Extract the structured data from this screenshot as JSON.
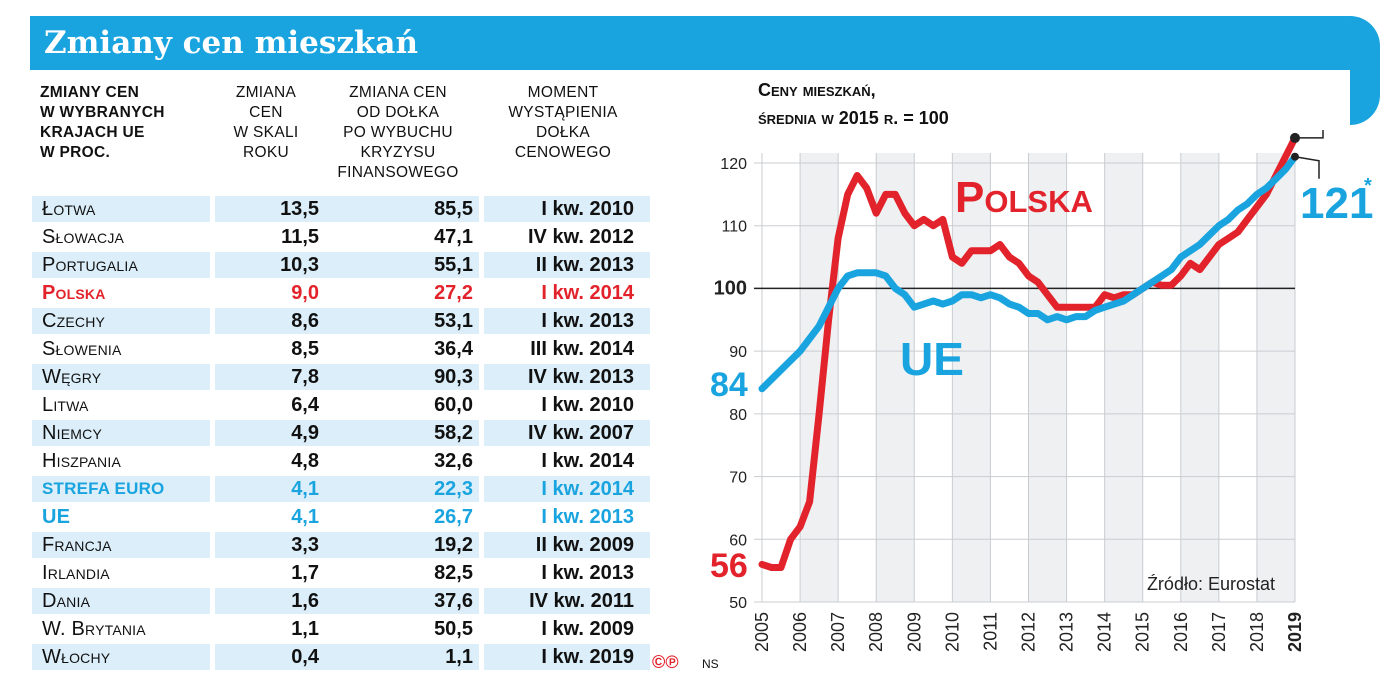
{
  "header": {
    "title": "Zmiany cen mieszkań"
  },
  "table": {
    "headers": {
      "title_lines": [
        "Zmiany cen",
        "w wybranych",
        "krajach UE",
        "w proc."
      ],
      "col1_lines": [
        "Zmiana",
        "cen",
        "w skali",
        "roku"
      ],
      "col2_lines": [
        "Zmiana cen",
        "od dołka",
        "po wybuchu",
        "kryzysu",
        "finansowego"
      ],
      "col3_lines": [
        "Moment",
        "wystąpienia",
        "dołka",
        "cenowego"
      ]
    },
    "rows": [
      {
        "country": "Łotwa",
        "change": "13,5",
        "from_low": "85,5",
        "moment": "I kw. 2010",
        "highlight": ""
      },
      {
        "country": "Słowacja",
        "change": "11,5",
        "from_low": "47,1",
        "moment": "IV kw. 2012",
        "highlight": ""
      },
      {
        "country": "Portugalia",
        "change": "10,3",
        "from_low": "55,1",
        "moment": "II kw. 2013",
        "highlight": ""
      },
      {
        "country": "Polska",
        "change": "9,0",
        "from_low": "27,2",
        "moment": "I kw. 2014",
        "highlight": "red"
      },
      {
        "country": "Czechy",
        "change": "8,6",
        "from_low": "53,1",
        "moment": "I kw. 2013",
        "highlight": ""
      },
      {
        "country": "Słowenia",
        "change": "8,5",
        "from_low": "36,4",
        "moment": "III kw. 2014",
        "highlight": ""
      },
      {
        "country": "Węgry",
        "change": "7,8",
        "from_low": "90,3",
        "moment": "IV kw. 2013",
        "highlight": ""
      },
      {
        "country": "Litwa",
        "change": "6,4",
        "from_low": "60,0",
        "moment": "I kw. 2010",
        "highlight": ""
      },
      {
        "country": "Niemcy",
        "change": "4,9",
        "from_low": "58,2",
        "moment": "IV kw. 2007",
        "highlight": ""
      },
      {
        "country": "Hiszpania",
        "change": "4,8",
        "from_low": "32,6",
        "moment": "I kw. 2014",
        "highlight": ""
      },
      {
        "country": "strefa euro",
        "change": "4,1",
        "from_low": "22,3",
        "moment": "I kw. 2014",
        "highlight": "blue euro"
      },
      {
        "country": "UE",
        "change": "4,1",
        "from_low": "26,7",
        "moment": "I kw. 2013",
        "highlight": "blue"
      },
      {
        "country": "Francja",
        "change": "3,3",
        "from_low": "19,2",
        "moment": "II kw. 2009",
        "highlight": ""
      },
      {
        "country": "Irlandia",
        "change": "1,7",
        "from_low": "82,5",
        "moment": "I kw. 2013",
        "highlight": ""
      },
      {
        "country": "Dania",
        "change": "1,6",
        "from_low": "37,6",
        "moment": "IV kw. 2011",
        "highlight": ""
      },
      {
        "country": "W. Brytania",
        "change": "1,1",
        "from_low": "50,5",
        "moment": "I kw. 2009",
        "highlight": ""
      },
      {
        "country": "Włochy",
        "change": "0,4",
        "from_low": "1,1",
        "moment": "I kw. 2019",
        "highlight": ""
      }
    ]
  },
  "footer": {
    "copyright": "©℗",
    "author": "NS"
  },
  "chart_data": {
    "type": "line",
    "title_lines": [
      "Ceny mieszkań,",
      "średnia w 2015 r. = 100"
    ],
    "source": "Źródło: Eurostat",
    "x_categories": [
      "2005",
      "2006",
      "2007",
      "2008",
      "2009",
      "2010",
      "2011",
      "2012",
      "2013",
      "2014",
      "2015",
      "2016",
      "2017",
      "2018",
      "2019"
    ],
    "ylim": [
      50,
      125
    ],
    "yticks": [
      50,
      60,
      70,
      80,
      90,
      100,
      110,
      120
    ],
    "reference_line": 100,
    "series": [
      {
        "name": "Polska",
        "color": "#e3232b",
        "x": [
          2005.0,
          2005.25,
          2005.5,
          2005.75,
          2006.0,
          2006.25,
          2006.5,
          2006.75,
          2007.0,
          2007.25,
          2007.5,
          2007.75,
          2008.0,
          2008.25,
          2008.5,
          2008.75,
          2009.0,
          2009.25,
          2009.5,
          2009.75,
          2010.0,
          2010.25,
          2010.5,
          2010.75,
          2011.0,
          2011.25,
          2011.5,
          2011.75,
          2012.0,
          2012.25,
          2012.5,
          2012.75,
          2013.0,
          2013.25,
          2013.5,
          2013.75,
          2014.0,
          2014.25,
          2014.5,
          2014.75,
          2015.0,
          2015.25,
          2015.5,
          2015.75,
          2016.0,
          2016.25,
          2016.5,
          2016.75,
          2017.0,
          2017.25,
          2017.5,
          2017.75,
          2018.0,
          2018.25,
          2018.5,
          2018.75,
          2019.0
        ],
        "values": [
          56,
          55.5,
          55.5,
          60,
          62,
          66,
          80,
          95,
          108,
          115,
          118,
          116,
          112,
          115,
          115,
          112,
          110,
          111,
          110,
          111,
          105,
          104,
          106,
          106,
          106,
          107,
          105,
          104,
          102,
          101,
          99,
          97,
          97,
          97,
          97,
          97,
          99,
          98.5,
          99,
          99,
          100,
          101,
          100.5,
          100.5,
          102,
          104,
          103,
          105,
          107,
          108,
          109,
          111,
          113,
          115,
          118,
          121,
          124
        ],
        "start_label": "56",
        "end_label": "124",
        "end_marker": "*",
        "series_label": "Polska"
      },
      {
        "name": "UE",
        "color": "#1aa4df",
        "x": [
          2005.0,
          2005.25,
          2005.5,
          2005.75,
          2006.0,
          2006.25,
          2006.5,
          2006.75,
          2007.0,
          2007.25,
          2007.5,
          2007.75,
          2008.0,
          2008.25,
          2008.5,
          2008.75,
          2009.0,
          2009.25,
          2009.5,
          2009.75,
          2010.0,
          2010.25,
          2010.5,
          2010.75,
          2011.0,
          2011.25,
          2011.5,
          2011.75,
          2012.0,
          2012.25,
          2012.5,
          2012.75,
          2013.0,
          2013.25,
          2013.5,
          2013.75,
          2014.0,
          2014.25,
          2014.5,
          2014.75,
          2015.0,
          2015.25,
          2015.5,
          2015.75,
          2016.0,
          2016.25,
          2016.5,
          2016.75,
          2017.0,
          2017.25,
          2017.5,
          2017.75,
          2018.0,
          2018.25,
          2018.5,
          2018.75,
          2019.0
        ],
        "values": [
          84,
          85.5,
          87,
          88.5,
          90,
          92,
          94,
          97,
          100,
          102,
          102.5,
          102.5,
          102.5,
          102,
          100,
          99,
          97,
          97.5,
          98,
          97.5,
          98,
          99,
          99,
          98.5,
          99,
          98.5,
          97.5,
          97,
          96,
          96,
          95,
          95.5,
          95,
          95.5,
          95.5,
          96.5,
          97,
          97.5,
          98,
          99,
          100,
          101,
          102,
          103,
          105,
          106,
          107,
          108.5,
          110,
          111,
          112.5,
          113.5,
          115,
          116,
          117.5,
          119,
          121
        ],
        "start_label": "84",
        "end_label": "121",
        "end_marker": "*",
        "series_label": "UE"
      }
    ]
  }
}
